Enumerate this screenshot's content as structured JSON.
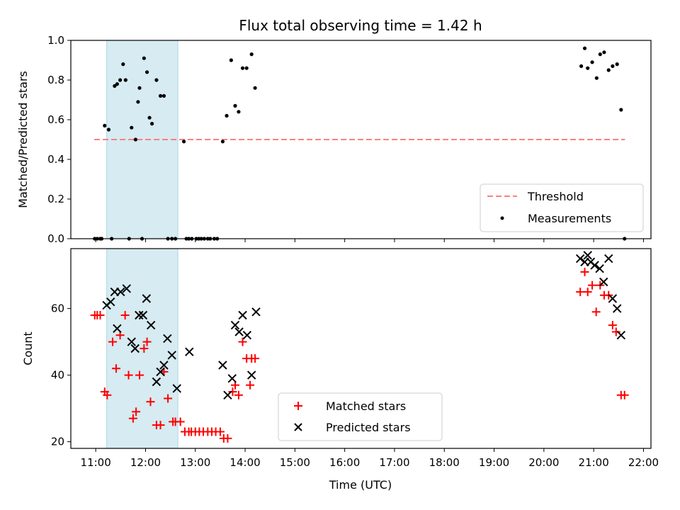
{
  "chart_data": {
    "title": "Flux total observing time = 1.42 h",
    "xlabel": "Time (UTC)",
    "x_unit": "decimal hours UTC",
    "xlim": [
      10.5,
      22.15
    ],
    "xticks": [
      "11:00",
      "12:00",
      "13:00",
      "14:00",
      "15:00",
      "16:00",
      "17:00",
      "18:00",
      "19:00",
      "20:00",
      "21:00",
      "22:00"
    ],
    "shaded_span": {
      "x": [
        11.22,
        12.65
      ],
      "color": "#add8e6"
    },
    "panels": [
      {
        "type": "scatter",
        "ylabel": "Matched/Predicted stars",
        "ylim": [
          0,
          1.0
        ],
        "yticks": [
          "0.0",
          "0.2",
          "0.4",
          "0.6",
          "0.8",
          "1.0"
        ],
        "legend_position": "lower right",
        "threshold": {
          "name": "Threshold",
          "value": 0.5,
          "x": [
            10.97,
            21.63
          ],
          "color": "#ff7f7f",
          "style": "dashed"
        },
        "series": [
          {
            "name": "Measurements",
            "color": "#000000",
            "marker": "dot",
            "x": [
              10.98,
              11.03,
              11.09,
              11.12,
              11.18,
              11.26,
              11.32,
              11.38,
              11.43,
              11.49,
              11.55,
              11.6,
              11.67,
              11.72,
              11.8,
              11.85,
              11.88,
              11.93,
              11.97,
              12.03,
              12.08,
              12.13,
              12.22,
              12.3,
              12.37,
              12.45,
              12.53,
              12.6,
              12.77,
              12.82,
              12.87,
              12.93,
              13.02,
              13.07,
              13.12,
              13.18,
              13.25,
              13.3,
              13.38,
              13.44,
              13.55,
              13.63,
              13.72,
              13.8,
              13.87,
              13.95,
              14.03,
              14.13,
              14.2,
              20.75,
              20.82,
              20.88,
              20.97,
              21.06,
              21.13,
              21.21,
              21.3,
              21.38,
              21.47,
              21.55,
              21.62
            ],
            "y": [
              0.0,
              0.0,
              0.0,
              0.0,
              0.57,
              0.55,
              0.0,
              0.77,
              0.78,
              0.8,
              0.88,
              0.8,
              0.0,
              0.56,
              0.5,
              0.69,
              0.76,
              0.0,
              0.91,
              0.84,
              0.61,
              0.58,
              0.8,
              0.72,
              0.72,
              0.0,
              0.0,
              0.0,
              0.49,
              0.0,
              0.0,
              0.0,
              0.0,
              0.0,
              0.0,
              0.0,
              0.0,
              0.0,
              0.0,
              0.0,
              0.49,
              0.62,
              0.9,
              0.67,
              0.64,
              0.86,
              0.86,
              0.93,
              0.76,
              0.87,
              0.96,
              0.86,
              0.89,
              0.81,
              0.93,
              0.94,
              0.85,
              0.87,
              0.88,
              0.65,
              0.0
            ]
          }
        ]
      },
      {
        "type": "scatter",
        "ylabel": "Count",
        "ylim": [
          18,
          78
        ],
        "yticks": [
          "20",
          "40",
          "60"
        ],
        "legend_position": "lower center",
        "series": [
          {
            "name": "Matched stars",
            "color": "#ff0000",
            "marker": "plus",
            "x": [
              10.98,
              11.03,
              11.09,
              11.18,
              11.23,
              11.34,
              11.41,
              11.49,
              11.59,
              11.66,
              11.75,
              11.81,
              11.88,
              11.97,
              12.03,
              12.1,
              12.22,
              12.3,
              12.37,
              12.45,
              12.55,
              12.6,
              12.7,
              12.79,
              12.87,
              12.92,
              13.0,
              13.08,
              13.16,
              13.25,
              13.33,
              13.41,
              13.5,
              13.57,
              13.65,
              13.75,
              13.8,
              13.87,
              13.95,
              14.03,
              14.1,
              14.13,
              14.2,
              20.73,
              20.82,
              20.88,
              20.97,
              21.05,
              21.13,
              21.21,
              21.3,
              21.38,
              21.45,
              21.55,
              21.62
            ],
            "y": [
              58,
              58,
              58,
              35,
              34,
              50,
              42,
              52,
              58,
              40,
              27,
              29,
              40,
              48,
              50,
              32,
              25,
              25,
              41,
              33,
              26,
              26,
              26,
              23,
              23,
              23,
              23,
              23,
              23,
              23,
              23,
              23,
              23,
              21,
              21,
              35,
              37,
              34,
              50,
              45,
              37,
              45,
              45,
              65,
              71,
              65,
              67,
              59,
              67,
              64,
              64,
              55,
              53,
              34,
              34
            ]
          },
          {
            "name": "Predicted stars",
            "color": "#000000",
            "marker": "x",
            "x": [
              11.22,
              11.3,
              11.38,
              11.43,
              11.5,
              11.62,
              11.72,
              11.79,
              11.87,
              11.95,
              12.02,
              12.11,
              12.22,
              12.3,
              12.37,
              12.44,
              12.53,
              12.63,
              12.88,
              13.55,
              13.65,
              13.74,
              13.8,
              13.88,
              13.95,
              14.04,
              14.13,
              14.22,
              20.73,
              20.82,
              20.88,
              20.94,
              21.02,
              21.12,
              21.2,
              21.3,
              21.38,
              21.47,
              21.55
            ],
            "y": [
              61,
              62,
              65,
              54,
              65,
              66,
              50,
              48,
              58,
              58,
              63,
              55,
              38,
              41,
              43,
              51,
              46,
              36,
              47,
              43,
              34,
              39,
              55,
              53,
              58,
              52,
              40,
              59,
              75,
              74,
              76,
              74,
              73,
              72,
              68,
              75,
              63,
              60,
              52
            ]
          }
        ]
      }
    ]
  }
}
